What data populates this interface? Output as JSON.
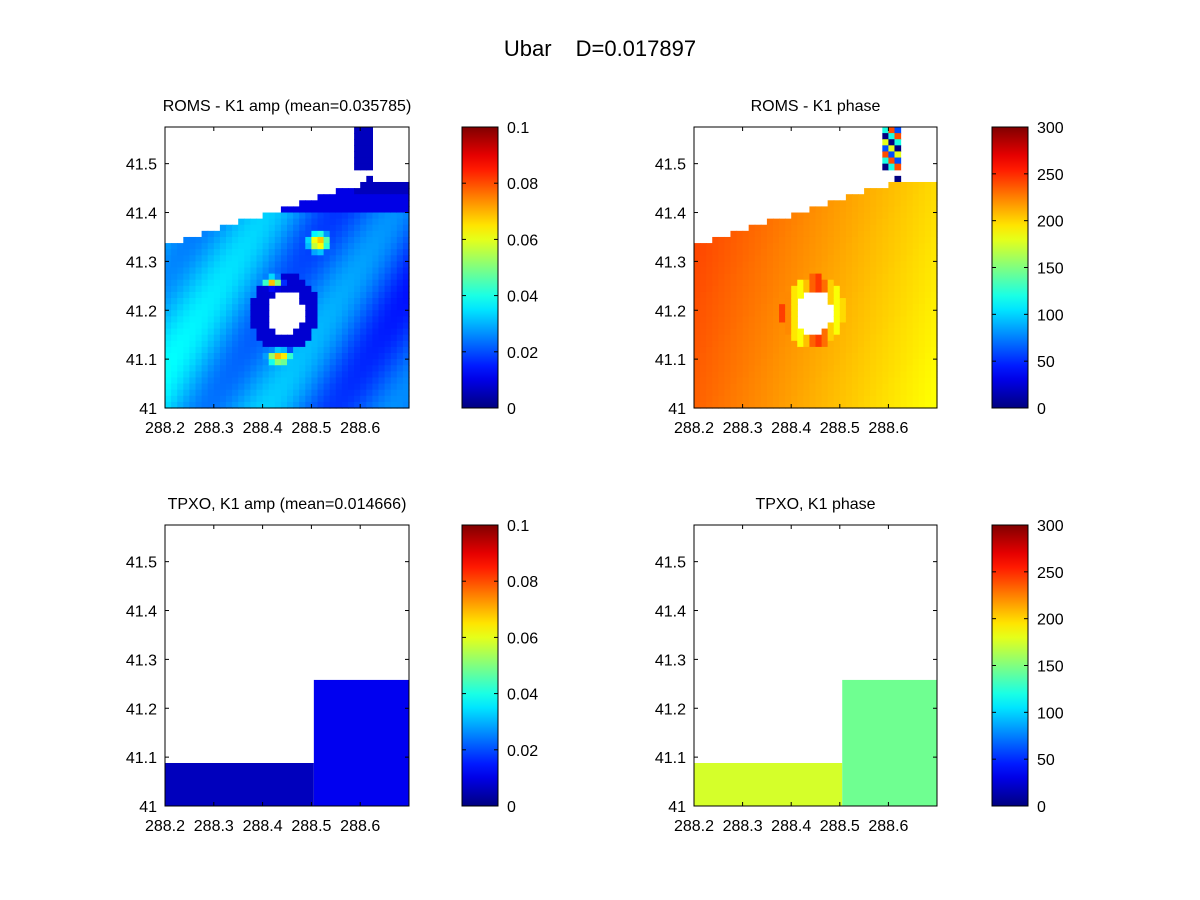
{
  "figure": {
    "title_left": "Ubar",
    "title_right": "D=0.017897"
  },
  "chart_data": [
    {
      "type": "heatmap",
      "title": "ROMS - K1 amp (mean=0.035785)",
      "x_ticks": [
        "288.2",
        "288.3",
        "288.4",
        "288.5",
        "288.6"
      ],
      "y_ticks": [
        "41",
        "41.1",
        "41.2",
        "41.3",
        "41.4",
        "41.5"
      ],
      "xlim": [
        288.2,
        288.7
      ],
      "ylim": [
        41.0,
        41.575
      ],
      "colorbar_ticks": [
        "0",
        "0.02",
        "0.04",
        "0.06",
        "0.08",
        "0.1"
      ],
      "clim": [
        0,
        0.1
      ],
      "colormap": "jet",
      "mean": 0.035785
    },
    {
      "type": "heatmap",
      "title": "ROMS - K1 phase",
      "x_ticks": [
        "288.2",
        "288.3",
        "288.4",
        "288.5",
        "288.6"
      ],
      "y_ticks": [
        "41",
        "41.1",
        "41.2",
        "41.3",
        "41.4",
        "41.5"
      ],
      "xlim": [
        288.2,
        288.7
      ],
      "ylim": [
        41.0,
        41.575
      ],
      "colorbar_ticks": [
        "0",
        "50",
        "100",
        "150",
        "200",
        "250",
        "300"
      ],
      "clim": [
        0,
        300
      ],
      "colormap": "jet"
    },
    {
      "type": "heatmap",
      "title": "TPXO, K1 amp (mean=0.014666)",
      "x_ticks": [
        "288.2",
        "288.3",
        "288.4",
        "288.5",
        "288.6"
      ],
      "y_ticks": [
        "41",
        "41.1",
        "41.2",
        "41.3",
        "41.4",
        "41.5"
      ],
      "xlim": [
        288.2,
        288.7
      ],
      "ylim": [
        41.0,
        41.575
      ],
      "colorbar_ticks": [
        "0",
        "0.02",
        "0.04",
        "0.06",
        "0.08",
        "0.1"
      ],
      "clim": [
        0,
        0.1
      ],
      "colormap": "jet",
      "mean": 0.014666,
      "cells": [
        {
          "x": [
            288.2,
            288.505
          ],
          "y": [
            41.0,
            41.088
          ],
          "value": 0.006
        },
        {
          "x": [
            288.505,
            288.7
          ],
          "y": [
            41.0,
            41.258
          ],
          "value": 0.011
        }
      ]
    },
    {
      "type": "heatmap",
      "title": "TPXO, K1 phase",
      "x_ticks": [
        "288.2",
        "288.3",
        "288.4",
        "288.5",
        "288.6"
      ],
      "y_ticks": [
        "41",
        "41.1",
        "41.2",
        "41.3",
        "41.4",
        "41.5"
      ],
      "xlim": [
        288.2,
        288.7
      ],
      "ylim": [
        41.0,
        41.575
      ],
      "colorbar_ticks": [
        "0",
        "50",
        "100",
        "150",
        "200",
        "250",
        "300"
      ],
      "clim": [
        0,
        300
      ],
      "colormap": "jet",
      "cells": [
        {
          "x": [
            288.2,
            288.505
          ],
          "y": [
            41.0,
            41.088
          ],
          "value": 175
        },
        {
          "x": [
            288.505,
            288.7
          ],
          "y": [
            41.0,
            41.258
          ],
          "value": 145
        }
      ]
    }
  ]
}
